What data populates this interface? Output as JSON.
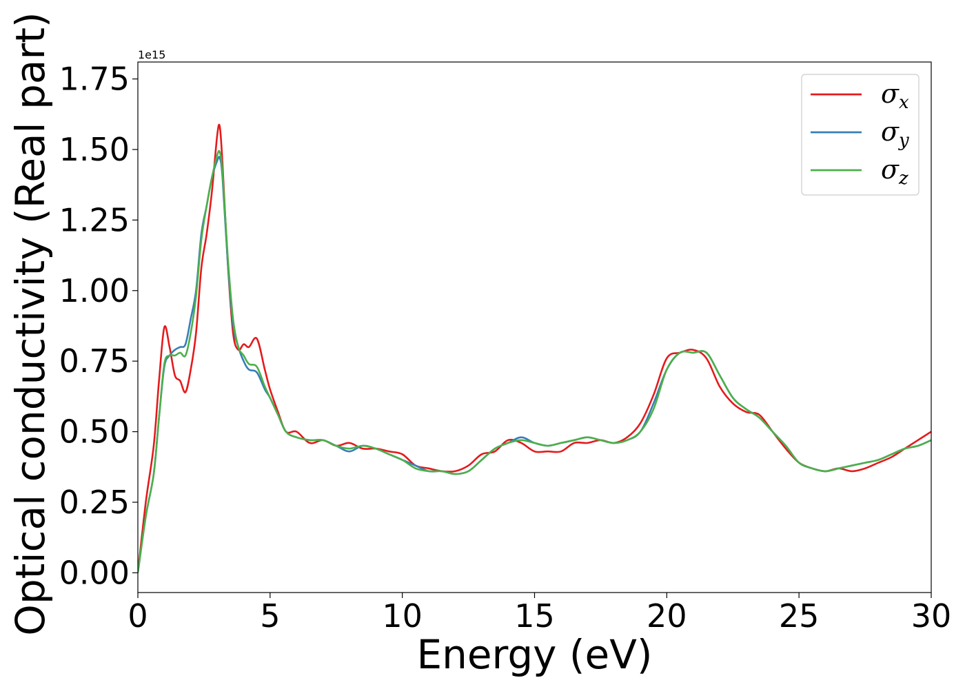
{
  "chart_data": {
    "type": "line",
    "title": "",
    "xlabel": "Energy (eV)",
    "ylabel": "Optical conductivity (Real part)",
    "y_offset_label": "1e15",
    "xlim": [
      0,
      30
    ],
    "ylim": [
      -0.07,
      1.81
    ],
    "xticks": [
      0,
      5,
      10,
      15,
      20,
      25,
      30
    ],
    "xtick_labels": [
      "0",
      "5",
      "10",
      "15",
      "20",
      "25",
      "30"
    ],
    "yticks": [
      0.0,
      0.25,
      0.5,
      0.75,
      1.0,
      1.25,
      1.5,
      1.75
    ],
    "ytick_labels": [
      "0.00",
      "0.25",
      "0.50",
      "0.75",
      "1.00",
      "1.25",
      "1.50",
      "1.75"
    ],
    "grid": false,
    "legend_position": "top-right",
    "series": [
      {
        "name": "x",
        "legend_symbol": "σ",
        "legend_subscript": "x",
        "color": "#e41a1c",
        "x": [
          0,
          0.3,
          0.6,
          0.8,
          1.0,
          1.2,
          1.4,
          1.6,
          1.8,
          2.0,
          2.2,
          2.4,
          2.6,
          2.8,
          3.0,
          3.1,
          3.2,
          3.4,
          3.6,
          3.8,
          4.0,
          4.2,
          4.5,
          4.8,
          5.0,
          5.3,
          5.6,
          6.0,
          6.5,
          7.0,
          7.5,
          8.0,
          8.5,
          9.0,
          9.5,
          10.0,
          10.5,
          11.0,
          11.5,
          12.0,
          12.5,
          13.0,
          13.5,
          14.0,
          14.5,
          15.0,
          15.5,
          16.0,
          16.5,
          17.0,
          17.5,
          18.0,
          18.5,
          19.0,
          19.5,
          20.0,
          20.5,
          21.0,
          21.5,
          22.0,
          22.5,
          23.0,
          23.5,
          24.0,
          24.5,
          25.0,
          25.5,
          26.0,
          26.5,
          27.0,
          27.5,
          28.0,
          28.5,
          29.0,
          29.5,
          30.0
        ],
        "y": [
          0.0,
          0.25,
          0.45,
          0.68,
          0.87,
          0.8,
          0.7,
          0.68,
          0.64,
          0.72,
          0.85,
          1.08,
          1.2,
          1.35,
          1.55,
          1.58,
          1.45,
          1.1,
          0.85,
          0.79,
          0.81,
          0.8,
          0.83,
          0.72,
          0.65,
          0.57,
          0.5,
          0.5,
          0.46,
          0.47,
          0.45,
          0.46,
          0.44,
          0.44,
          0.43,
          0.42,
          0.38,
          0.37,
          0.36,
          0.36,
          0.38,
          0.42,
          0.43,
          0.47,
          0.46,
          0.43,
          0.43,
          0.43,
          0.46,
          0.46,
          0.47,
          0.46,
          0.48,
          0.53,
          0.63,
          0.76,
          0.78,
          0.79,
          0.76,
          0.66,
          0.6,
          0.57,
          0.56,
          0.5,
          0.44,
          0.39,
          0.37,
          0.36,
          0.37,
          0.36,
          0.37,
          0.39,
          0.41,
          0.44,
          0.47,
          0.5
        ]
      },
      {
        "name": "y",
        "legend_symbol": "σ",
        "legend_subscript": "y",
        "color": "#377eb8",
        "x": [
          0,
          0.3,
          0.6,
          0.8,
          1.0,
          1.2,
          1.4,
          1.6,
          1.8,
          2.0,
          2.2,
          2.4,
          2.6,
          2.8,
          3.0,
          3.1,
          3.2,
          3.4,
          3.6,
          3.8,
          4.0,
          4.2,
          4.5,
          4.8,
          5.0,
          5.3,
          5.6,
          6.0,
          6.5,
          7.0,
          7.5,
          8.0,
          8.5,
          9.0,
          9.5,
          10.0,
          10.5,
          11.0,
          11.5,
          12.0,
          12.5,
          13.0,
          13.5,
          14.0,
          14.5,
          15.0,
          15.5,
          16.0,
          16.5,
          17.0,
          17.5,
          18.0,
          18.5,
          19.0,
          19.5,
          20.0,
          20.5,
          21.0,
          21.5,
          22.0,
          22.5,
          23.0,
          23.5,
          24.0,
          24.5,
          25.0,
          25.5,
          26.0,
          26.5,
          27.0,
          27.5,
          28.0,
          28.5,
          29.0,
          29.5,
          30.0
        ],
        "y": [
          0.0,
          0.2,
          0.35,
          0.55,
          0.73,
          0.77,
          0.79,
          0.8,
          0.81,
          0.9,
          1.0,
          1.2,
          1.3,
          1.4,
          1.46,
          1.47,
          1.4,
          1.1,
          0.88,
          0.8,
          0.75,
          0.72,
          0.71,
          0.65,
          0.62,
          0.56,
          0.5,
          0.48,
          0.47,
          0.47,
          0.45,
          0.43,
          0.45,
          0.44,
          0.42,
          0.4,
          0.38,
          0.36,
          0.36,
          0.35,
          0.36,
          0.4,
          0.44,
          0.46,
          0.48,
          0.46,
          0.45,
          0.46,
          0.47,
          0.48,
          0.47,
          0.46,
          0.47,
          0.5,
          0.6,
          0.72,
          0.78,
          0.78,
          0.78,
          0.7,
          0.62,
          0.58,
          0.55,
          0.5,
          0.45,
          0.39,
          0.37,
          0.36,
          0.37,
          0.38,
          0.39,
          0.4,
          0.42,
          0.44,
          0.45,
          0.47
        ]
      },
      {
        "name": "z",
        "legend_symbol": "σ",
        "legend_subscript": "z",
        "color": "#4daf4a",
        "x": [
          0,
          0.3,
          0.6,
          0.8,
          1.0,
          1.2,
          1.4,
          1.6,
          1.8,
          2.0,
          2.2,
          2.4,
          2.6,
          2.8,
          3.0,
          3.1,
          3.2,
          3.4,
          3.6,
          3.8,
          4.0,
          4.2,
          4.5,
          4.8,
          5.0,
          5.3,
          5.6,
          6.0,
          6.5,
          7.0,
          7.5,
          8.0,
          8.5,
          9.0,
          9.5,
          10.0,
          10.5,
          11.0,
          11.5,
          12.0,
          12.5,
          13.0,
          13.5,
          14.0,
          14.5,
          15.0,
          15.5,
          16.0,
          16.5,
          17.0,
          17.5,
          18.0,
          18.5,
          19.0,
          19.5,
          20.0,
          20.5,
          21.0,
          21.5,
          22.0,
          22.5,
          23.0,
          23.5,
          24.0,
          24.5,
          25.0,
          25.5,
          26.0,
          26.5,
          27.0,
          27.5,
          28.0,
          28.5,
          29.0,
          29.5,
          30.0
        ],
        "y": [
          0.0,
          0.2,
          0.35,
          0.55,
          0.74,
          0.77,
          0.77,
          0.78,
          0.77,
          0.85,
          0.98,
          1.18,
          1.3,
          1.4,
          1.48,
          1.49,
          1.42,
          1.12,
          0.9,
          0.8,
          0.77,
          0.74,
          0.73,
          0.66,
          0.62,
          0.56,
          0.5,
          0.48,
          0.47,
          0.47,
          0.45,
          0.44,
          0.45,
          0.44,
          0.42,
          0.4,
          0.37,
          0.36,
          0.36,
          0.35,
          0.36,
          0.4,
          0.44,
          0.46,
          0.47,
          0.46,
          0.45,
          0.46,
          0.47,
          0.48,
          0.47,
          0.46,
          0.47,
          0.5,
          0.58,
          0.72,
          0.78,
          0.78,
          0.78,
          0.7,
          0.62,
          0.58,
          0.55,
          0.5,
          0.45,
          0.39,
          0.37,
          0.36,
          0.37,
          0.38,
          0.39,
          0.4,
          0.42,
          0.44,
          0.45,
          0.47
        ]
      }
    ]
  }
}
